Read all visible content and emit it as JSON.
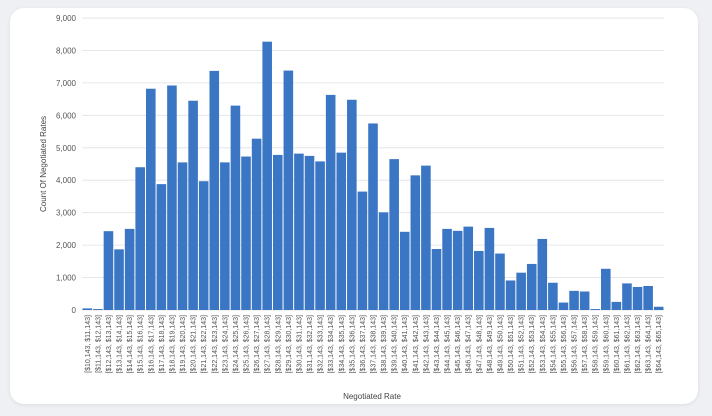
{
  "chart_data": {
    "type": "bar",
    "xlabel": "Negotiated Rate",
    "ylabel": "Count Of Negotiated Rates",
    "ylim": [
      0,
      9000
    ],
    "yticks": [
      "0",
      "1,000",
      "2,000",
      "3,000",
      "4,000",
      "5,000",
      "6,000",
      "7,000",
      "8,000",
      "9,000"
    ],
    "grid": true,
    "color": "#3a76c4",
    "categories": [
      "[$10,143, $11,143]",
      "[$11,143, $12,143]",
      "[$12,143, $13,143]",
      "[$13,143, $14,143]",
      "[$14,143, $15,143]",
      "[$15,143, $16,143]",
      "[$16,143, $17,143]",
      "[$17,143, $18,143]",
      "[$18,143, $19,143]",
      "[$19,143, $20,143]",
      "[$20,143, $21,143]",
      "[$21,143, $22,143]",
      "[$22,143, $23,143]",
      "[$23,143, $24,143]",
      "[$24,143, $25,143]",
      "[$25,143, $26,143]",
      "[$26,143, $27,143]",
      "[$27,143, $28,143]",
      "[$28,143, $29,143]",
      "[$29,143, $30,143]",
      "[$30,143, $31,143]",
      "[$31,143, $32,143]",
      "[$32,143, $33,143]",
      "[$33,143, $34,143]",
      "[$34,143, $35,143]",
      "[$35,143, $36,143]",
      "[$36,143, $37,143]",
      "[$37,143, $38,143]",
      "[$38,143, $39,143]",
      "[$39,143, $40,143]",
      "[$40,143, $41,143]",
      "[$41,143, $42,143]",
      "[$42,143, $43,143]",
      "[$43,143, $44,143]",
      "[$44,143, $45,143]",
      "[$45,143, $46,143]",
      "[$46,143, $47,143]",
      "[$47,143, $48,143]",
      "[$48,143, $49,143]",
      "[$49,143, $50,143]",
      "[$50,143, $51,143]",
      "[$51,143, $52,143]",
      "[$52,143, $53,143]",
      "[$53,143, $54,143]",
      "[$54,143, $55,143]",
      "[$55,143, $56,143]",
      "[$56,143, $57,143]",
      "[$57,143, $58,143]",
      "[$58,143, $59,143]",
      "[$59,143, $60,143]",
      "[$60,143, $61,143]",
      "[$61,143, $62,143]",
      "[$62,143, $63,143]",
      "[$63,143, $64,143]",
      "[$64,143, $65,143]"
    ],
    "values": [
      50,
      30,
      2430,
      1870,
      2500,
      4400,
      6820,
      3880,
      6920,
      4550,
      6450,
      3970,
      7370,
      4550,
      6300,
      4730,
      5280,
      8270,
      4780,
      7380,
      4820,
      4750,
      4580,
      6630,
      4850,
      6480,
      3650,
      5750,
      3010,
      4650,
      2410,
      4150,
      4450,
      1880,
      2500,
      2440,
      2570,
      1820,
      2530,
      1740,
      910,
      1150,
      1420,
      2190,
      840,
      230,
      590,
      570,
      30,
      1270,
      250,
      820,
      710,
      740,
      100
    ]
  }
}
